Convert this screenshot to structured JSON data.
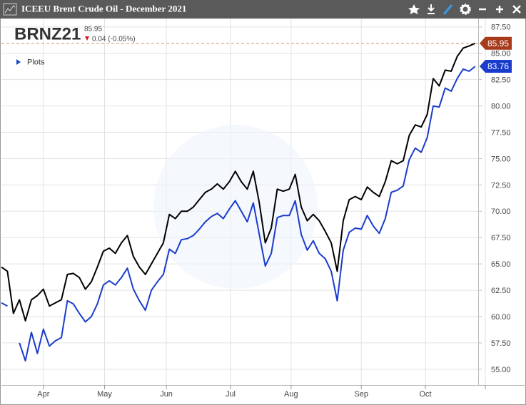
{
  "chart_data": {
    "type": "line",
    "title": "ICEEU Brent Crude Oil - December 2021",
    "symbol": "BRNZ21",
    "last_price": "85.95",
    "change": "0.04 (-0.05%)",
    "legend_label": "Plots",
    "xlim": [
      0,
      79.5
    ],
    "xticks": [
      {
        "value": 7,
        "label": "Apr"
      },
      {
        "value": 17.2,
        "label": "May"
      },
      {
        "value": 27.5,
        "label": "Jun"
      },
      {
        "value": 38.2,
        "label": "Jul"
      },
      {
        "value": 48.3,
        "label": "Aug"
      },
      {
        "value": 60,
        "label": "Sep"
      },
      {
        "value": 70.7,
        "label": "Oct"
      },
      {
        "value": 80.7,
        "label": null
      }
    ],
    "ylim": [
      53.5,
      88.3
    ],
    "yticks": [
      {
        "value": 55,
        "label": "55.00"
      },
      {
        "value": 57.5,
        "label": "57.50"
      },
      {
        "value": 60,
        "label": "60.00"
      },
      {
        "value": 62.5,
        "label": "62.50"
      },
      {
        "value": 65,
        "label": "65.00"
      },
      {
        "value": 67.5,
        "label": "67.50"
      },
      {
        "value": 70,
        "label": "70.00"
      },
      {
        "value": 72.5,
        "label": "72.50"
      },
      {
        "value": 75,
        "label": "75.00"
      },
      {
        "value": 77.5,
        "label": "77.50"
      },
      {
        "value": 80,
        "label": "80.00"
      },
      {
        "value": 82.5,
        "label": "82.50"
      },
      {
        "value": 85,
        "label": "85.00"
      },
      {
        "value": 87.5,
        "label": "87.50"
      }
    ],
    "grid": true,
    "series": [
      {
        "color": "#000000",
        "badge_color": "#a83a1c",
        "values": [
          64.7,
          64.3,
          60.3,
          61.6,
          59.6,
          61.6,
          62,
          62.6,
          61,
          61.3,
          61.6,
          64,
          64.1,
          63.7,
          62.6,
          63.3,
          64.7,
          66.2,
          66.5,
          66,
          67,
          67.7,
          65.7,
          64.7,
          64,
          65,
          66,
          67,
          69.7,
          69.3,
          70,
          70,
          70.4,
          71.1,
          71.8,
          72.1,
          72.6,
          72.1,
          72.8,
          73.8,
          72.8,
          72.1,
          73.8,
          70.8,
          67,
          68.4,
          72.1,
          71.9,
          72.1,
          73.5,
          70.4,
          69.1,
          69.7,
          69.1,
          68.1,
          67,
          64.3,
          69.1,
          71.1,
          71.4,
          71.1,
          72.3,
          71.8,
          71.4,
          72.8,
          74.8,
          74.5,
          74.8,
          77.2,
          78.2,
          78,
          79.2,
          82.6,
          81.9,
          83.4,
          83.3,
          84.7,
          85.5,
          85.7,
          85.95
        ]
      },
      {
        "color": "#1a3ccc",
        "badge_color": "#1a3ccc",
        "values": [
          61.3,
          61.0,
          null,
          57.5,
          55.8,
          58.5,
          56.5,
          58.8,
          57.2,
          57.7,
          58.0,
          61.5,
          61.2,
          60.3,
          59.5,
          60.0,
          61.2,
          63.0,
          63.4,
          63.0,
          63.7,
          64.6,
          62.6,
          61.5,
          60.6,
          62.5,
          63.3,
          64.0,
          66.4,
          66.0,
          67.3,
          67.4,
          67.7,
          68.3,
          69.0,
          69.5,
          69.8,
          69.3,
          70.2,
          71.0,
          70.0,
          69.0,
          70.8,
          67.8,
          64.8,
          66.0,
          69.4,
          69.6,
          69.6,
          71.0,
          67.8,
          66.3,
          67.2,
          66.0,
          65.5,
          64.3,
          61.5,
          66.3,
          68.0,
          68.4,
          68.3,
          69.6,
          68.6,
          67.9,
          69.3,
          71.8,
          72.0,
          72.4,
          74.9,
          76.0,
          75.6,
          77.0,
          80.0,
          79.9,
          81.7,
          81.4,
          82.6,
          83.5,
          83.3,
          83.76
        ]
      }
    ]
  }
}
